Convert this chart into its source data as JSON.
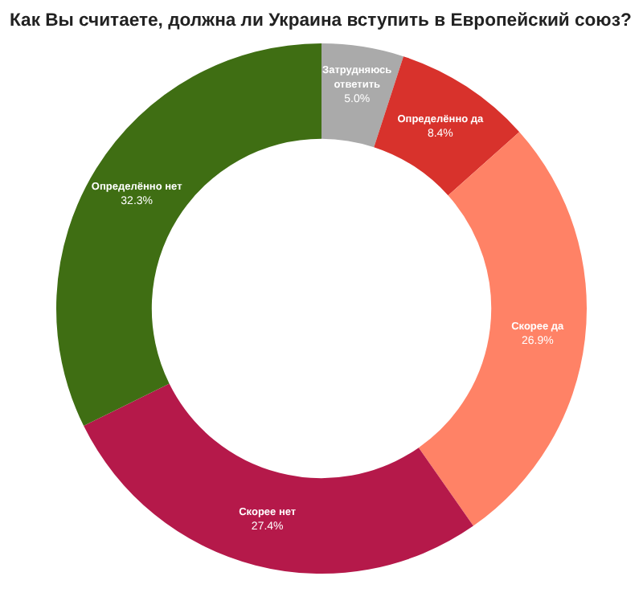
{
  "chart_data": {
    "type": "donut",
    "title": "Как Вы считаете, должна ли Украина вступить в Европейский союз?",
    "categories": [
      "Затрудняюсь ответить",
      "Определённо да",
      "Скорее да",
      "Скорее нет",
      "Определённо нет"
    ],
    "values": [
      5.0,
      8.4,
      26.9,
      27.4,
      32.3
    ],
    "value_labels": [
      "5.0%",
      "8.4%",
      "26.9%",
      "27.4%",
      "32.3%"
    ],
    "colors": [
      "#aaaaaa",
      "#d8322c",
      "#ff8266",
      "#b5194a",
      "#3f6e13"
    ],
    "legend": false
  }
}
